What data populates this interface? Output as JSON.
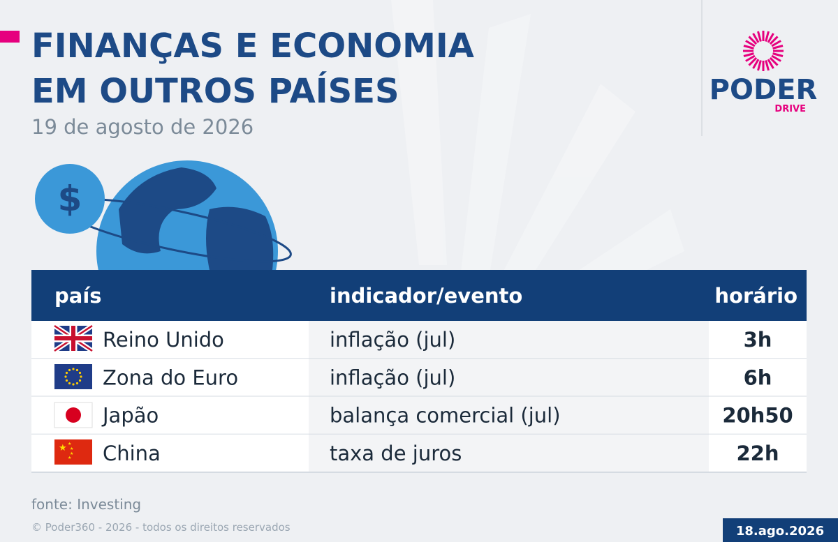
{
  "header": {
    "title_lines": [
      "FINANÇAS E ECONOMIA",
      "EM OUTROS PAÍSES"
    ],
    "date": "19 de agosto de 2026"
  },
  "logo": {
    "name": "PODER",
    "sub": "DRIVE"
  },
  "table": {
    "columns": [
      "país",
      "indicador/evento",
      "horário"
    ],
    "rows": [
      [
        "Reino Unido",
        "inflação (jul)",
        "3h"
      ],
      [
        "Zona do Euro",
        "inflação (jul)",
        "6h"
      ],
      [
        "Japão",
        "balança comercial (jul)",
        "20h50"
      ],
      [
        "China",
        "taxa de juros",
        "22h"
      ]
    ]
  },
  "footer": {
    "source": "fonte: Investing",
    "copyright": "© Poder360 - 2026 - todos os direitos reservados",
    "date": "18.ago.2026"
  }
}
